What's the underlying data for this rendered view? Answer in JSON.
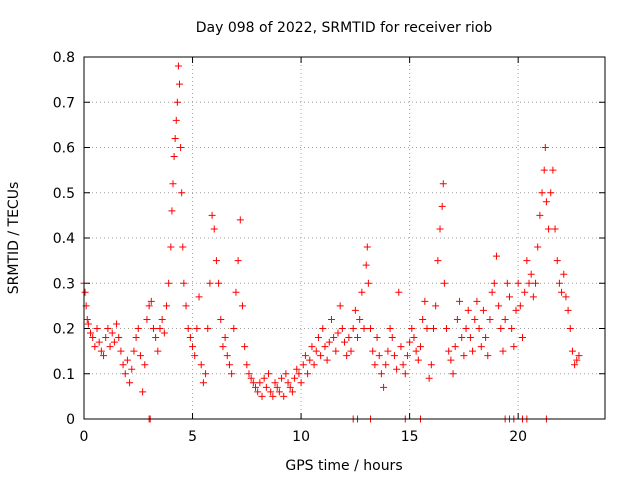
{
  "chart_data": {
    "type": "scatter",
    "title": "Day 098 of 2022, SRMTID for receiver riob",
    "xlabel": "GPS time / hours",
    "ylabel": "SRMTID / TECUs",
    "xlim": [
      0,
      24
    ],
    "ylim": [
      0,
      0.8
    ],
    "grid": true,
    "marker": "+",
    "x_ticks": [
      0,
      5,
      10,
      15,
      20
    ],
    "x_tick_labels": [
      "0",
      "5",
      "10",
      "15",
      "20"
    ],
    "y_ticks": [
      0,
      0.1,
      0.2,
      0.3,
      0.4,
      0.5,
      0.6,
      0.7,
      0.8
    ],
    "y_tick_labels": [
      "0",
      "0.1",
      "0.2",
      "0.3",
      "0.4",
      "0.5",
      "0.6",
      "0.7",
      "0.8"
    ],
    "series": [
      {
        "name": "SRMTID",
        "color": "#ff0000",
        "points": [
          [
            0.0,
            0.3
          ],
          [
            0.05,
            0.28
          ],
          [
            0.1,
            0.25
          ],
          [
            0.15,
            0.22
          ],
          [
            0.2,
            0.21
          ],
          [
            0.3,
            0.19
          ],
          [
            0.4,
            0.18
          ],
          [
            0.5,
            0.16
          ],
          [
            0.6,
            0.2
          ],
          [
            0.7,
            0.17
          ],
          [
            0.8,
            0.15
          ],
          [
            0.9,
            0.14
          ],
          [
            1.0,
            0.18
          ],
          [
            1.1,
            0.2
          ],
          [
            1.2,
            0.16
          ],
          [
            1.3,
            0.19
          ],
          [
            1.4,
            0.17
          ],
          [
            1.5,
            0.21
          ],
          [
            1.6,
            0.18
          ],
          [
            1.7,
            0.15
          ],
          [
            1.8,
            0.12
          ],
          [
            1.9,
            0.1
          ],
          [
            2.0,
            0.13
          ],
          [
            2.1,
            0.08
          ],
          [
            2.2,
            0.11
          ],
          [
            2.3,
            0.15
          ],
          [
            2.4,
            0.18
          ],
          [
            2.5,
            0.2
          ],
          [
            2.6,
            0.14
          ],
          [
            2.7,
            0.06
          ],
          [
            2.8,
            0.12
          ],
          [
            2.9,
            0.22
          ],
          [
            3.0,
            0.25
          ],
          [
            3.1,
            0.26
          ],
          [
            3.2,
            0.2
          ],
          [
            3.3,
            0.18
          ],
          [
            3.4,
            0.15
          ],
          [
            3.5,
            0.2
          ],
          [
            3.6,
            0.22
          ],
          [
            3.7,
            0.19
          ],
          [
            3.8,
            0.25
          ],
          [
            3.9,
            0.3
          ],
          [
            4.0,
            0.38
          ],
          [
            4.05,
            0.46
          ],
          [
            4.1,
            0.52
          ],
          [
            4.15,
            0.58
          ],
          [
            4.2,
            0.62
          ],
          [
            4.25,
            0.66
          ],
          [
            4.3,
            0.7
          ],
          [
            4.35,
            0.78
          ],
          [
            4.4,
            0.74
          ],
          [
            4.45,
            0.6
          ],
          [
            4.5,
            0.5
          ],
          [
            4.55,
            0.38
          ],
          [
            4.6,
            0.3
          ],
          [
            4.7,
            0.25
          ],
          [
            4.8,
            0.2
          ],
          [
            4.9,
            0.18
          ],
          [
            5.0,
            0.16
          ],
          [
            5.1,
            0.14
          ],
          [
            5.2,
            0.2
          ],
          [
            5.3,
            0.27
          ],
          [
            5.4,
            0.12
          ],
          [
            5.5,
            0.08
          ],
          [
            5.6,
            0.1
          ],
          [
            5.7,
            0.2
          ],
          [
            5.8,
            0.3
          ],
          [
            5.9,
            0.45
          ],
          [
            6.0,
            0.42
          ],
          [
            6.1,
            0.35
          ],
          [
            6.2,
            0.3
          ],
          [
            6.3,
            0.22
          ],
          [
            6.4,
            0.16
          ],
          [
            6.5,
            0.18
          ],
          [
            6.6,
            0.14
          ],
          [
            6.7,
            0.12
          ],
          [
            6.8,
            0.1
          ],
          [
            6.9,
            0.2
          ],
          [
            7.0,
            0.28
          ],
          [
            7.1,
            0.35
          ],
          [
            7.2,
            0.44
          ],
          [
            7.3,
            0.25
          ],
          [
            7.4,
            0.16
          ],
          [
            7.5,
            0.12
          ],
          [
            7.6,
            0.1
          ],
          [
            7.7,
            0.09
          ],
          [
            7.8,
            0.08
          ],
          [
            7.9,
            0.07
          ],
          [
            8.0,
            0.06
          ],
          [
            8.1,
            0.08
          ],
          [
            8.2,
            0.05
          ],
          [
            8.3,
            0.09
          ],
          [
            8.4,
            0.07
          ],
          [
            8.5,
            0.1
          ],
          [
            8.6,
            0.06
          ],
          [
            8.7,
            0.05
          ],
          [
            8.8,
            0.08
          ],
          [
            8.9,
            0.07
          ],
          [
            9.0,
            0.06
          ],
          [
            9.1,
            0.09
          ],
          [
            9.2,
            0.05
          ],
          [
            9.3,
            0.1
          ],
          [
            9.4,
            0.08
          ],
          [
            9.5,
            0.07
          ],
          [
            9.6,
            0.06
          ],
          [
            9.7,
            0.09
          ],
          [
            9.8,
            0.11
          ],
          [
            9.9,
            0.1
          ],
          [
            10.0,
            0.08
          ],
          [
            10.1,
            0.12
          ],
          [
            10.2,
            0.14
          ],
          [
            10.3,
            0.1
          ],
          [
            10.4,
            0.13
          ],
          [
            10.5,
            0.16
          ],
          [
            10.6,
            0.12
          ],
          [
            10.7,
            0.15
          ],
          [
            10.8,
            0.18
          ],
          [
            10.9,
            0.14
          ],
          [
            11.0,
            0.2
          ],
          [
            11.1,
            0.16
          ],
          [
            11.2,
            0.13
          ],
          [
            11.3,
            0.17
          ],
          [
            11.4,
            0.22
          ],
          [
            11.5,
            0.18
          ],
          [
            11.6,
            0.15
          ],
          [
            11.7,
            0.19
          ],
          [
            11.8,
            0.25
          ],
          [
            11.9,
            0.2
          ],
          [
            12.0,
            0.17
          ],
          [
            12.1,
            0.14
          ],
          [
            12.2,
            0.18
          ],
          [
            12.3,
            0.15
          ],
          [
            12.4,
            0.2
          ],
          [
            12.5,
            0.24
          ],
          [
            12.6,
            0.18
          ],
          [
            12.7,
            0.22
          ],
          [
            12.8,
            0.28
          ],
          [
            12.9,
            0.2
          ],
          [
            13.0,
            0.34
          ],
          [
            13.05,
            0.38
          ],
          [
            13.1,
            0.3
          ],
          [
            13.2,
            0.2
          ],
          [
            13.3,
            0.15
          ],
          [
            13.4,
            0.12
          ],
          [
            13.5,
            0.18
          ],
          [
            13.6,
            0.14
          ],
          [
            13.7,
            0.1
          ],
          [
            13.8,
            0.07
          ],
          [
            13.9,
            0.12
          ],
          [
            14.0,
            0.15
          ],
          [
            14.1,
            0.2
          ],
          [
            14.2,
            0.18
          ],
          [
            14.3,
            0.14
          ],
          [
            14.4,
            0.11
          ],
          [
            14.5,
            0.28
          ],
          [
            14.6,
            0.16
          ],
          [
            14.7,
            0.12
          ],
          [
            14.8,
            0.1
          ],
          [
            14.9,
            0.14
          ],
          [
            15.0,
            0.17
          ],
          [
            15.1,
            0.2
          ],
          [
            15.2,
            0.18
          ],
          [
            15.3,
            0.15
          ],
          [
            15.4,
            0.13
          ],
          [
            15.5,
            0.16
          ],
          [
            15.6,
            0.22
          ],
          [
            15.7,
            0.26
          ],
          [
            15.8,
            0.2
          ],
          [
            15.9,
            0.09
          ],
          [
            16.0,
            0.12
          ],
          [
            16.1,
            0.2
          ],
          [
            16.2,
            0.25
          ],
          [
            16.3,
            0.35
          ],
          [
            16.4,
            0.42
          ],
          [
            16.5,
            0.47
          ],
          [
            16.55,
            0.52
          ],
          [
            16.6,
            0.3
          ],
          [
            16.7,
            0.2
          ],
          [
            16.8,
            0.15
          ],
          [
            16.9,
            0.13
          ],
          [
            17.0,
            0.1
          ],
          [
            17.1,
            0.16
          ],
          [
            17.2,
            0.22
          ],
          [
            17.3,
            0.26
          ],
          [
            17.4,
            0.18
          ],
          [
            17.5,
            0.14
          ],
          [
            17.6,
            0.2
          ],
          [
            17.7,
            0.24
          ],
          [
            17.8,
            0.18
          ],
          [
            17.9,
            0.15
          ],
          [
            18.0,
            0.22
          ],
          [
            18.1,
            0.26
          ],
          [
            18.2,
            0.2
          ],
          [
            18.3,
            0.16
          ],
          [
            18.4,
            0.24
          ],
          [
            18.5,
            0.18
          ],
          [
            18.6,
            0.14
          ],
          [
            18.7,
            0.22
          ],
          [
            18.8,
            0.28
          ],
          [
            18.9,
            0.3
          ],
          [
            19.0,
            0.36
          ],
          [
            19.1,
            0.25
          ],
          [
            19.2,
            0.2
          ],
          [
            19.3,
            0.15
          ],
          [
            19.4,
            0.22
          ],
          [
            19.5,
            0.3
          ],
          [
            19.6,
            0.27
          ],
          [
            19.7,
            0.2
          ],
          [
            19.8,
            0.16
          ],
          [
            19.9,
            0.24
          ],
          [
            20.0,
            0.3
          ],
          [
            20.1,
            0.25
          ],
          [
            20.2,
            0.18
          ],
          [
            20.3,
            0.28
          ],
          [
            20.4,
            0.35
          ],
          [
            20.5,
            0.3
          ],
          [
            20.6,
            0.32
          ],
          [
            20.7,
            0.27
          ],
          [
            20.8,
            0.3
          ],
          [
            20.9,
            0.38
          ],
          [
            21.0,
            0.45
          ],
          [
            21.1,
            0.5
          ],
          [
            21.2,
            0.55
          ],
          [
            21.25,
            0.6
          ],
          [
            21.3,
            0.48
          ],
          [
            21.4,
            0.42
          ],
          [
            21.5,
            0.5
          ],
          [
            21.6,
            0.55
          ],
          [
            21.7,
            0.42
          ],
          [
            21.8,
            0.35
          ],
          [
            21.9,
            0.3
          ],
          [
            22.0,
            0.28
          ],
          [
            22.1,
            0.32
          ],
          [
            22.2,
            0.27
          ],
          [
            22.3,
            0.24
          ],
          [
            22.4,
            0.2
          ],
          [
            22.5,
            0.15
          ],
          [
            22.6,
            0.12
          ],
          [
            22.7,
            0.13
          ],
          [
            22.8,
            0.14
          ],
          [
            3.0,
            0.0
          ],
          [
            3.05,
            0.0
          ],
          [
            12.4,
            0.0
          ],
          [
            12.6,
            0.0
          ],
          [
            13.2,
            0.0
          ],
          [
            14.8,
            0.0
          ],
          [
            15.5,
            0.0
          ],
          [
            19.4,
            0.0
          ],
          [
            19.6,
            0.0
          ],
          [
            19.8,
            0.0
          ],
          [
            20.2,
            0.0
          ],
          [
            20.4,
            0.0
          ],
          [
            21.3,
            0.0
          ]
        ]
      }
    ]
  }
}
